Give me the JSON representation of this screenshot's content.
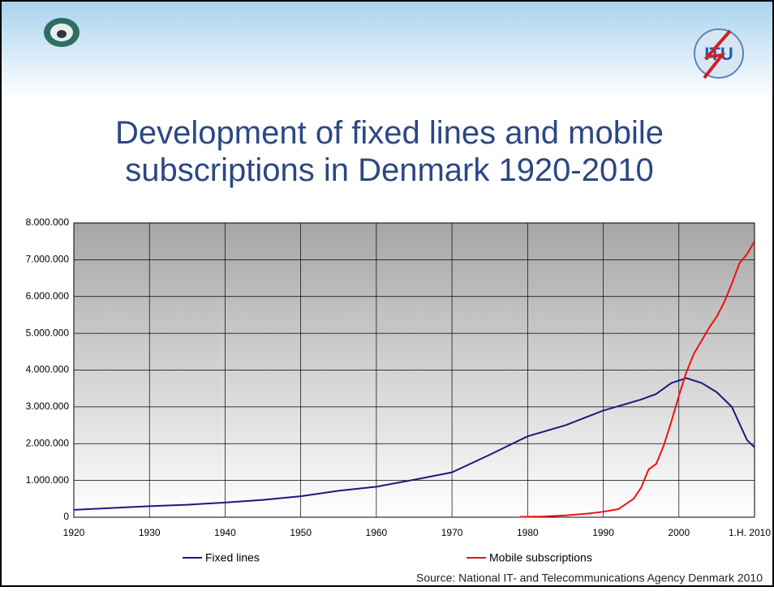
{
  "chart_data": {
    "type": "line",
    "title": "Development of fixed lines and mobile subscriptions in Denmark 1920-2010",
    "source": "Source: National IT- and Telecommunications Agency Denmark 2010",
    "series": [
      {
        "name": "Fixed lines",
        "color": "#1a1a80",
        "x": [
          1920,
          1925,
          1930,
          1935,
          1940,
          1945,
          1950,
          1955,
          1960,
          1965,
          1970,
          1975,
          1980,
          1985,
          1990,
          1995,
          1997,
          1999,
          2001,
          2003,
          2005,
          2007,
          2009,
          2010
        ],
        "values": [
          200000,
          250000,
          300000,
          340000,
          400000,
          470000,
          570000,
          720000,
          830000,
          1020000,
          1220000,
          1700000,
          2200000,
          2500000,
          2900000,
          3200000,
          3350000,
          3650000,
          3780000,
          3650000,
          3400000,
          3000000,
          2100000,
          1900000
        ]
      },
      {
        "name": "Mobile subscriptions",
        "color": "#ee1111",
        "x": [
          1979,
          1982,
          1985,
          1988,
          1990,
          1992,
          1994,
          1995,
          1996,
          1997,
          1998,
          1999,
          2000,
          2001,
          2002,
          2003,
          2004,
          2005,
          2006,
          2007,
          2008,
          2009,
          2010
        ],
        "values": [
          10000,
          20000,
          50000,
          100000,
          150000,
          220000,
          500000,
          800000,
          1300000,
          1450000,
          1950000,
          2600000,
          3300000,
          3950000,
          4450000,
          4800000,
          5150000,
          5450000,
          5850000,
          6350000,
          6900000,
          7150000,
          7500000
        ]
      }
    ],
    "xlim": [
      1920,
      2010
    ],
    "xticks": [
      1920,
      1930,
      1940,
      1950,
      1960,
      1970,
      1980,
      1990,
      2000,
      {
        "value": 2010,
        "label": "1.H. 2010"
      }
    ],
    "ylim": [
      0,
      8000000
    ],
    "yticks": [
      0,
      {
        "value": 1000000,
        "label": "1.000.000"
      },
      {
        "value": 2000000,
        "label": "2.000.000"
      },
      {
        "value": 3000000,
        "label": "3.000.000"
      },
      {
        "value": 4000000,
        "label": "4.000.000"
      },
      {
        "value": 5000000,
        "label": "5.000.000"
      },
      {
        "value": 6000000,
        "label": "6.000.000"
      },
      {
        "value": 7000000,
        "label": "7.000.000"
      },
      {
        "value": 8000000,
        "label": "8.000.000"
      }
    ],
    "grid": true,
    "legend": "bottom"
  }
}
